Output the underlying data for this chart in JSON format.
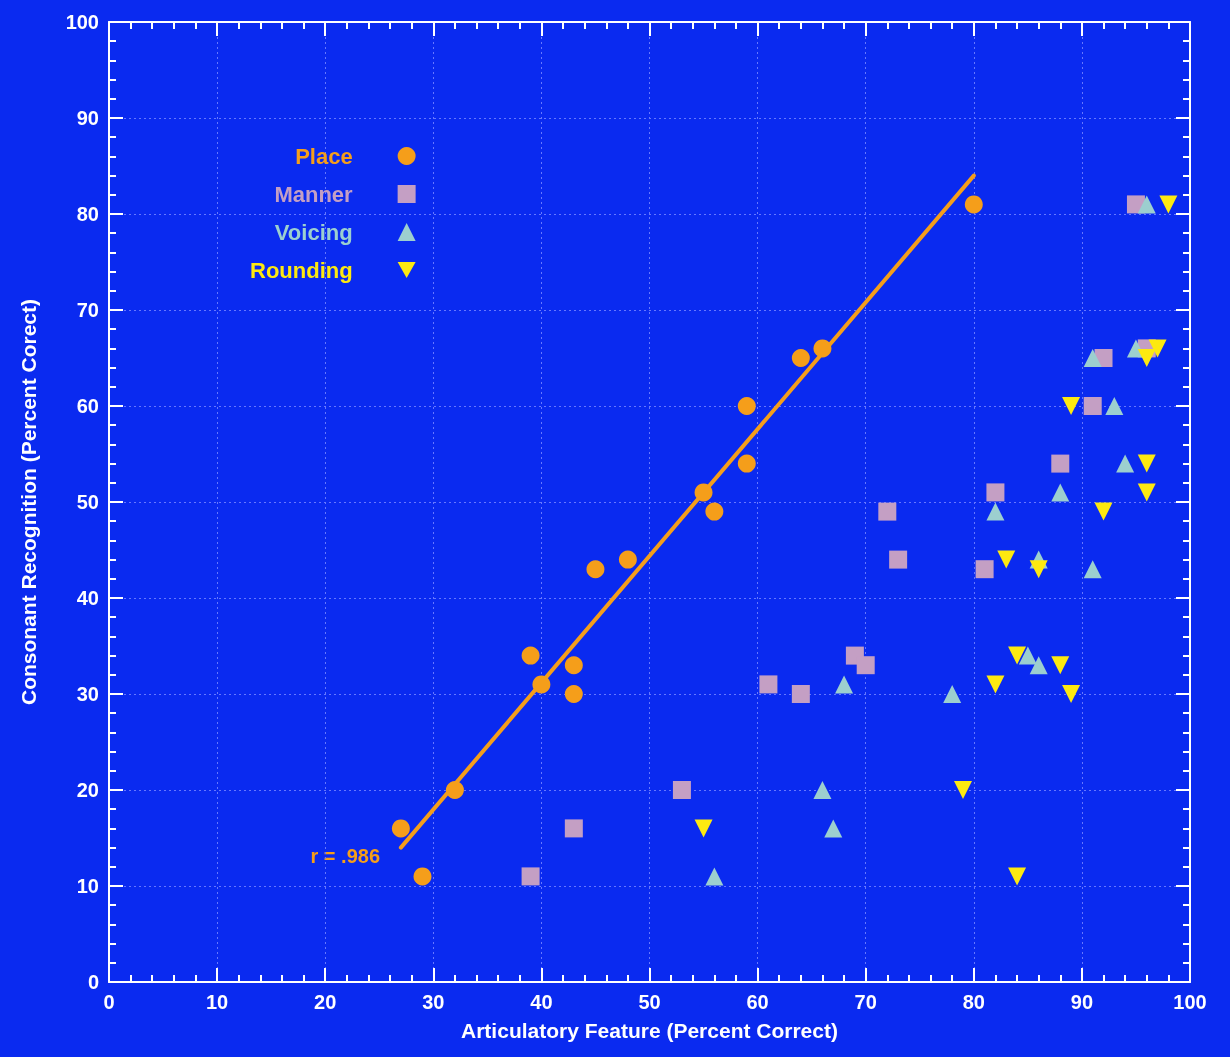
{
  "chart_data": {
    "type": "scatter",
    "xlabel": "Articulatory Feature (Percent Correct)",
    "ylabel": "Consonant Recognition (Percent Corect)",
    "xlim": [
      0,
      100
    ],
    "xticks": [
      0,
      10,
      20,
      30,
      40,
      50,
      60,
      70,
      80,
      90,
      100
    ],
    "ylim": [
      0,
      100
    ],
    "yticks": [
      0,
      10,
      20,
      30,
      40,
      50,
      60,
      70,
      80,
      90,
      100
    ],
    "grid": true,
    "legend": "top left",
    "annotations": [
      "r = .986"
    ],
    "series": [
      {
        "name": "Place",
        "color": "#f59e1a",
        "marker": "circle",
        "x": [
          27,
          29,
          32,
          39,
          40,
          43,
          43,
          45,
          48,
          55,
          56,
          59,
          59,
          64,
          66,
          80
        ],
        "values": [
          16,
          11,
          20,
          34,
          31,
          33,
          30,
          43,
          44,
          51,
          49,
          54,
          60,
          65,
          66,
          81
        ]
      },
      {
        "name": "Manner",
        "color": "#c49fc4",
        "marker": "square",
        "x": [
          39,
          43,
          53,
          61,
          64,
          69,
          70,
          72,
          73,
          81,
          82,
          88,
          91,
          92,
          95,
          96
        ],
        "values": [
          11,
          16,
          20,
          31,
          30,
          34,
          33,
          49,
          44,
          43,
          51,
          54,
          60,
          65,
          81,
          66
        ]
      },
      {
        "name": "Voicing",
        "color": "#9ccfcf",
        "marker": "triangle",
        "x": [
          56,
          66,
          67,
          68,
          78,
          82,
          85,
          86,
          86,
          88,
          91,
          91,
          93,
          94,
          95,
          96
        ],
        "values": [
          11,
          20,
          16,
          31,
          30,
          49,
          34,
          33,
          44,
          51,
          43,
          65,
          60,
          54,
          66,
          81
        ]
      },
      {
        "name": "Rounding",
        "color": "#fde910",
        "marker": "triangle_down",
        "x": [
          55,
          79,
          82,
          83,
          84,
          84,
          86,
          88,
          89,
          89,
          92,
          96,
          96,
          96,
          97,
          98
        ],
        "values": [
          16,
          20,
          31,
          44,
          34,
          11,
          43,
          33,
          30,
          60,
          49,
          54,
          51,
          65,
          66,
          81
        ]
      },
      {
        "type": "line",
        "color": "#f59e1a",
        "marker": "none",
        "line_style": "solid",
        "x": [
          27,
          80
        ],
        "values": [
          14,
          84
        ]
      }
    ]
  }
}
